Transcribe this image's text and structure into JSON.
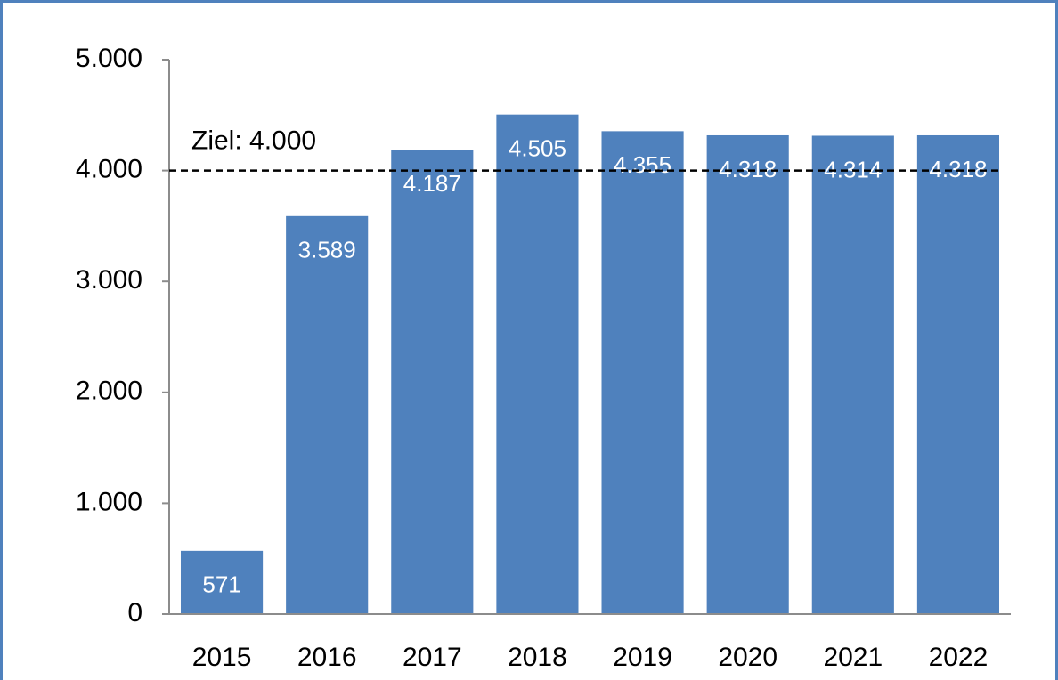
{
  "chart_data": {
    "type": "bar",
    "categories": [
      "2015",
      "2016",
      "2017",
      "2018",
      "2019",
      "2020",
      "2021",
      "2022"
    ],
    "values": [
      571,
      3589,
      4187,
      4505,
      4355,
      4318,
      4314,
      4318
    ],
    "value_labels": [
      "571",
      "3.589",
      "4.187",
      "4.505",
      "4.355",
      "4.318",
      "4.314",
      "4.318"
    ],
    "color": "#4f81bd",
    "ylim": [
      0,
      5000
    ],
    "yticks": [
      0,
      {
        "value": 1000,
        "label": "1.000"
      },
      {
        "value": 2000,
        "label": "2.000"
      },
      {
        "value": 3000,
        "label": "3.000"
      },
      {
        "value": 4000,
        "label": "4.000"
      },
      {
        "value": 5000,
        "label": "5.000"
      }
    ],
    "grid": false,
    "reference_line": {
      "value": 4000,
      "label": "Ziel: 4.000"
    }
  }
}
